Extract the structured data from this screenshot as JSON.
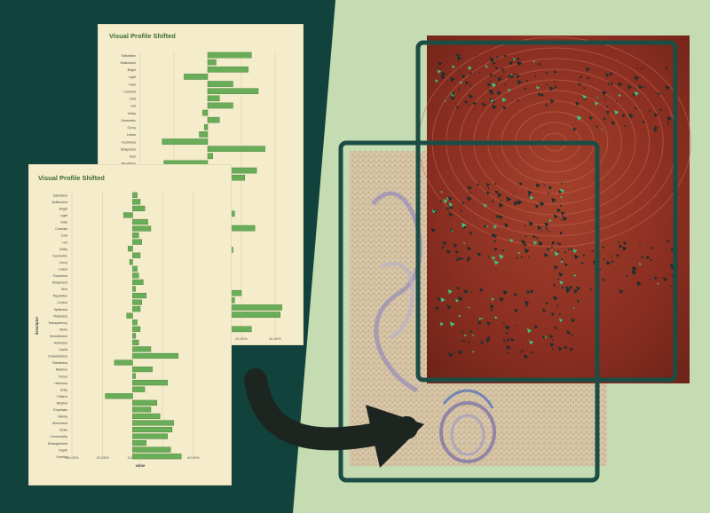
{
  "colors": {
    "dark_bg": "#11433c",
    "light_bg": "#c5dbb2",
    "card_bg": "#f4eccb",
    "bar_fill": "#6aad58",
    "bar_stroke": "#3f7d35",
    "frame": "#1c4d44",
    "arrow": "#1d2521",
    "painting_red": "#8c2f21"
  },
  "chart_data": [
    {
      "type": "bar",
      "orientation": "horizontal",
      "title": "Visual Profile Shifted",
      "ylabel": "descriptor",
      "xlabel": "value",
      "xlim": [
        -0.4,
        0.5
      ],
      "tick_labels": [
        "-40.00%",
        "-20.00%",
        "0.00%",
        "20.00%",
        "40.00%"
      ],
      "categories": [
        "Saturation",
        "Multicolour",
        "Bright",
        "Light",
        "Dark",
        "Contrast",
        "Cold",
        "Hot",
        "Noisy",
        "Geometric",
        "Curvy",
        "Linear",
        "Fuzziness",
        "Sharpness",
        "Size",
        "Repetition",
        "Control",
        "Spikiness",
        "Thickness",
        "Transparency",
        "Gloss",
        "Smoothness",
        "Hardness",
        "Liquid",
        "Crowdedness",
        "Blankness",
        "Balance",
        "Focus",
        "Harmony",
        "Unity",
        "Pattern",
        "Rhythm",
        "Emphasis",
        "Variety",
        "Movement",
        "Scale",
        "Connectivity",
        "Entanglement",
        "Depth",
        "Overlap"
      ],
      "values": [
        0.26,
        0.05,
        0.24,
        -0.14,
        0.15,
        0.3,
        0.07,
        0.15,
        -0.03,
        0.07,
        -0.02,
        -0.05,
        -0.27,
        0.34,
        0.03,
        -0.26,
        0.29,
        0.22,
        -0.28,
        0.09,
        -0.29,
        -0.12,
        0.16,
        0.03,
        0.28,
        -0.16,
        0.05,
        0.15,
        -0.1,
        -0.22,
        -0.18,
        -0.06,
        0.04,
        0.2,
        0.16,
        0.44,
        0.43,
        -0.04,
        0.26,
        0.12
      ]
    },
    {
      "type": "bar",
      "orientation": "horizontal",
      "title": "Visual Profile Shifted",
      "ylabel": "descriptor",
      "xlabel": "value",
      "xlim": [
        -0.4,
        0.5
      ],
      "tick_labels": [
        "-40.00%",
        "-20.00%",
        "0.00%",
        "20.00%",
        "40.00%"
      ],
      "categories": [
        "Saturation",
        "Multicolour",
        "Bright",
        "Light",
        "Dark",
        "Contrast",
        "Cold",
        "Hot",
        "Noisy",
        "Geometric",
        "Curvy",
        "Linear",
        "Fuzziness",
        "Sharpness",
        "Size",
        "Repetition",
        "Control",
        "Spikiness",
        "Thickness",
        "Transparency",
        "Gloss",
        "Smoothness",
        "Hardness",
        "Liquid",
        "Crowdedness",
        "Blankness",
        "Balance",
        "Focus",
        "Harmony",
        "Unity",
        "Pattern",
        "Rhythm",
        "Emphasis",
        "Variety",
        "Movement",
        "Scale",
        "Connectivity",
        "Entanglement",
        "Depth",
        "Overlap"
      ],
      "values": [
        0.03,
        0.05,
        0.08,
        -0.06,
        0.1,
        0.12,
        0.04,
        0.06,
        -0.03,
        0.05,
        -0.02,
        0.03,
        0.04,
        0.07,
        0.02,
        0.09,
        0.06,
        0.05,
        -0.04,
        0.03,
        0.05,
        0.02,
        0.04,
        0.12,
        0.3,
        -0.12,
        0.13,
        0.02,
        0.23,
        0.08,
        -0.18,
        0.16,
        0.12,
        0.18,
        0.27,
        0.26,
        0.23,
        0.09,
        0.25,
        0.32
      ]
    }
  ]
}
